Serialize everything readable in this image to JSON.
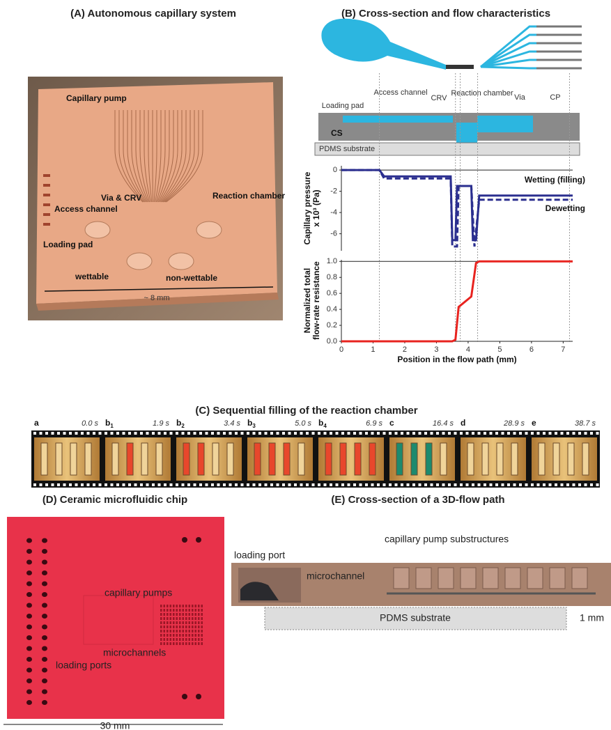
{
  "panel_a": {
    "title": "(A) Autonomous capillary system",
    "labels": [
      "Capillary pump",
      "Via & CRV",
      "Reaction chamber",
      "Access channel",
      "Loading pad",
      "wettable",
      "non-wettable",
      "~ 8 mm"
    ]
  },
  "panel_b": {
    "title": "(B) Cross-section and flow characteristics",
    "labels": [
      "Loading pad",
      "Access channel",
      "CRV",
      "Reaction chamber",
      "Via",
      "CP",
      "CS",
      "PDMS substrate"
    ]
  },
  "chart_data": [
    {
      "type": "line",
      "ylabel": [
        "Capillary pressure",
        "x 10³ (Pa)"
      ],
      "xlim": [
        0,
        7.3
      ],
      "ylim": [
        -7.6,
        0.4
      ],
      "yticks": [
        0,
        -2,
        -4,
        -6
      ],
      "series": [
        {
          "name": "Wetting (filling)",
          "color": "#2b2f8f",
          "dash": false,
          "x": [
            0,
            1.2,
            1.35,
            3.45,
            3.5,
            3.6,
            3.65,
            4.1,
            4.15,
            4.25,
            4.35,
            7.3
          ],
          "values": [
            0,
            0,
            -0.6,
            -0.6,
            -6.6,
            -6.6,
            -1.5,
            -1.5,
            -6.6,
            -6.6,
            -2.4,
            -2.4
          ]
        },
        {
          "name": "Dewetting",
          "color": "#2b2f8f",
          "dash": true,
          "x": [
            0,
            1.2,
            1.35,
            3.45,
            3.5,
            3.65,
            3.7,
            4.1,
            4.2,
            4.35,
            7.3
          ],
          "values": [
            0,
            0,
            -0.8,
            -0.8,
            -7.2,
            -7.2,
            -1.5,
            -1.5,
            -7.2,
            -2.8,
            -2.8
          ]
        }
      ]
    },
    {
      "type": "line",
      "ylabel": [
        "Normalized total",
        "flow-rate resistance"
      ],
      "xlabel": "Position in the flow path (mm)",
      "xlim": [
        0,
        7.3
      ],
      "ylim": [
        0,
        1.02
      ],
      "xticks": [
        0,
        1,
        2,
        3,
        4,
        5,
        6,
        7
      ],
      "yticks": [
        {
          "value": 0,
          "label": "0.0"
        },
        0.2,
        0.4,
        0.6,
        0.8,
        {
          "value": 1,
          "label": "1.0"
        }
      ],
      "series": [
        {
          "name": null,
          "color": "#e8231f",
          "dash": false,
          "x": [
            0,
            3.5,
            3.6,
            3.7,
            4.1,
            4.25,
            4.35,
            7.3
          ],
          "values": [
            0,
            0,
            0.02,
            0.43,
            0.56,
            0.98,
            1,
            1
          ]
        }
      ]
    }
  ],
  "panel_c": {
    "title": "(C) Sequential filling of the reaction chamber",
    "frames": [
      {
        "letter": "a",
        "sub": null,
        "time": "0.0 s"
      },
      {
        "letter": "b",
        "sub": "1",
        "time": "1.9 s"
      },
      {
        "letter": "b",
        "sub": "2",
        "time": "3.4 s"
      },
      {
        "letter": "b",
        "sub": "3",
        "time": "5.0 s"
      },
      {
        "letter": "b",
        "sub": "4",
        "time": "6.9 s"
      },
      {
        "letter": "c",
        "sub": null,
        "time": "16.4 s"
      },
      {
        "letter": "d",
        "sub": null,
        "time": "28.9 s"
      },
      {
        "letter": "e",
        "sub": null,
        "time": "38.7 s"
      }
    ]
  },
  "panel_d": {
    "title": "(D) Ceramic microfluidic chip",
    "labels": [
      "capillary pumps",
      "microchannels",
      "loading ports",
      "30 mm"
    ]
  },
  "panel_e": {
    "title": "(E) Cross-section of a 3D-flow path",
    "labels": [
      "loading port",
      "capillary pump substructures",
      "microchannel",
      "PDMS substrate",
      "1 mm"
    ]
  }
}
